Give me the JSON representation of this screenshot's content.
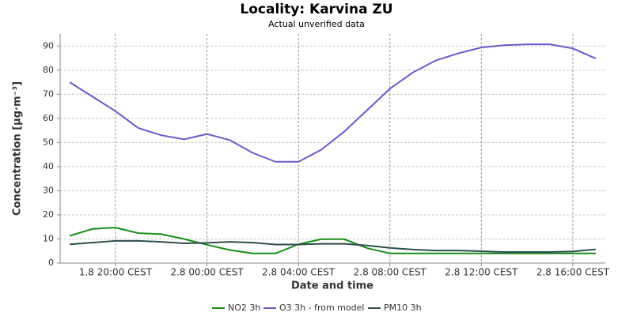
{
  "chart_data": {
    "type": "line",
    "title": "Locality: Karvina ZU",
    "subtitle": "Actual unverified data",
    "x_label": "Date and time",
    "y_label": "Concentration [µg·m⁻³]",
    "categories": [
      null,
      null,
      "1.8 20:00 CEST",
      null,
      null,
      null,
      "2.8 00:00 CEST",
      null,
      null,
      null,
      "2.8 04:00 CEST",
      null,
      null,
      null,
      "2.8 08:00 CEST",
      null,
      null,
      null,
      "2.8 12:00 CEST",
      null,
      null,
      null,
      "2.8 16:00 CEST",
      null
    ],
    "series": [
      {
        "name": "NO2 3h",
        "color": "#1a8c1a",
        "values": [
          11.3,
          14.2,
          14.7,
          12.4,
          12,
          10,
          7.6,
          5.4,
          4,
          4,
          7.8,
          9.9,
          9.9,
          6.2,
          4,
          4,
          4,
          4,
          4,
          4,
          4,
          4,
          4,
          4
        ]
      },
      {
        "name": "O3 3h - from model",
        "color": "#6a5acd",
        "values": [
          75,
          69,
          63,
          56,
          53,
          51.3,
          53.5,
          51,
          45.7,
          42,
          42,
          47,
          54.5,
          63.4,
          72.3,
          79,
          84,
          87,
          89.4,
          90.3,
          90.7,
          90.7,
          89,
          84.8
        ]
      },
      {
        "name": "PM10 3h",
        "color": "#2f4f4f",
        "values": [
          7.8,
          8.5,
          9.2,
          9.2,
          8.8,
          8.2,
          8.4,
          8.8,
          8.5,
          7.7,
          7.7,
          8,
          8,
          7.3,
          6.3,
          5.6,
          5.2,
          5.2,
          4.9,
          4.6,
          4.6,
          4.6,
          4.8,
          5.7
        ]
      }
    ],
    "ylim": [
      0,
      95
    ],
    "yticks": [
      0,
      10,
      20,
      30,
      40,
      50,
      60,
      70,
      80,
      90
    ],
    "grid": true
  }
}
